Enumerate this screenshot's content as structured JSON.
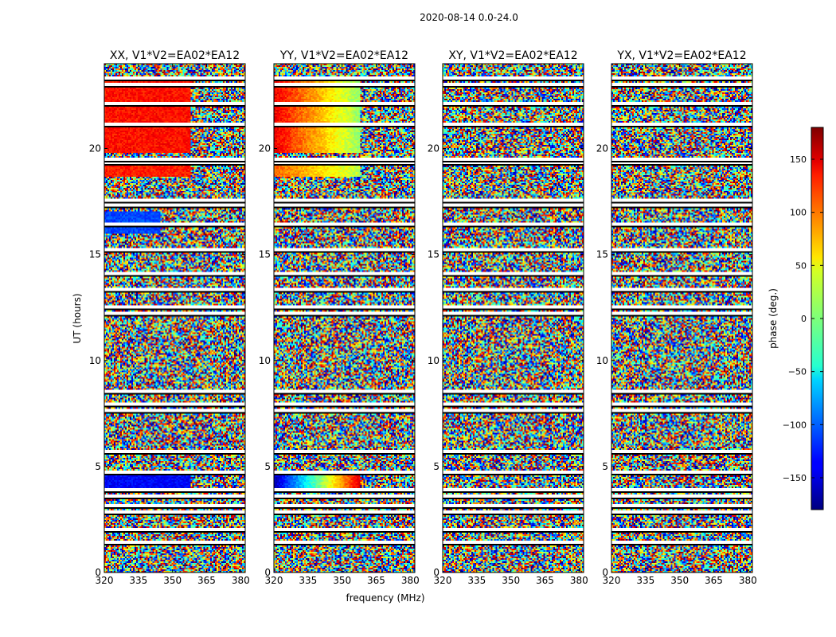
{
  "chart_data": {
    "type": "heatmap",
    "title": "2020-08-14 0.0-24.0",
    "xlabel": "frequency (MHz)",
    "ylabel": "UT (hours)",
    "xlim": [
      320,
      382
    ],
    "ylim": [
      0,
      24
    ],
    "x_ticks": [
      320,
      335,
      350,
      365,
      380
    ],
    "y_ticks": [
      0,
      5,
      10,
      15,
      20
    ],
    "panels": [
      {
        "title": "XX, V1*V2=EA02*EA12",
        "polarization": "XX"
      },
      {
        "title": "YY, V1*V2=EA02*EA12",
        "polarization": "YY"
      },
      {
        "title": "XY, V1*V2=EA02*EA12",
        "polarization": "XY"
      },
      {
        "title": "YX, V1*V2=EA02*EA12",
        "polarization": "YX"
      }
    ],
    "colorbar": {
      "label": "phase (deg.)",
      "range": [
        -180,
        180
      ],
      "ticks": [
        150,
        100,
        50,
        0,
        -50,
        -100,
        -150
      ],
      "tick_labels": [
        "150",
        "100",
        "50",
        "0",
        "−50",
        "−100",
        "−150"
      ],
      "colormap": "jet"
    },
    "flagged_ut_hours": [
      1.5,
      2.1,
      2.9,
      3.2,
      3.7,
      4.0,
      4.8,
      5.8,
      7.7,
      8.0,
      8.6,
      12.3,
      12.6,
      13.4,
      14.2,
      15.3,
      16.5,
      17.4,
      17.6,
      19.4,
      19.6,
      21.2,
      22.2,
      23.1,
      23.4
    ],
    "coherent_regions": [
      {
        "panel": "XX",
        "ut_start": 19.8,
        "ut_end": 23.3,
        "freq_start": 320,
        "freq_end": 358,
        "phase_deg": 130
      },
      {
        "panel": "XX",
        "ut_start": 18.7,
        "ut_end": 19.3,
        "freq_start": 320,
        "freq_end": 358,
        "phase_deg": 125
      },
      {
        "panel": "XX",
        "ut_start": 16.0,
        "ut_end": 17.0,
        "freq_start": 320,
        "freq_end": 345,
        "phase_deg": -110
      },
      {
        "panel": "XX",
        "ut_start": 3.8,
        "ut_end": 4.6,
        "freq_start": 320,
        "freq_end": 358,
        "phase_deg": -135
      },
      {
        "panel": "YY",
        "ut_start": 19.8,
        "ut_end": 23.3,
        "freq_start": 320,
        "freq_end": 358,
        "phase_deg_start": 140,
        "phase_deg_end": 5
      },
      {
        "panel": "YY",
        "ut_start": 18.7,
        "ut_end": 19.3,
        "freq_start": 320,
        "freq_end": 358,
        "phase_deg_start": 100,
        "phase_deg_end": 20
      },
      {
        "panel": "YY",
        "ut_start": 3.8,
        "ut_end": 4.6,
        "freq_start": 320,
        "freq_end": 358,
        "phase_deg_start": -160,
        "phase_deg_end": 150
      }
    ]
  }
}
